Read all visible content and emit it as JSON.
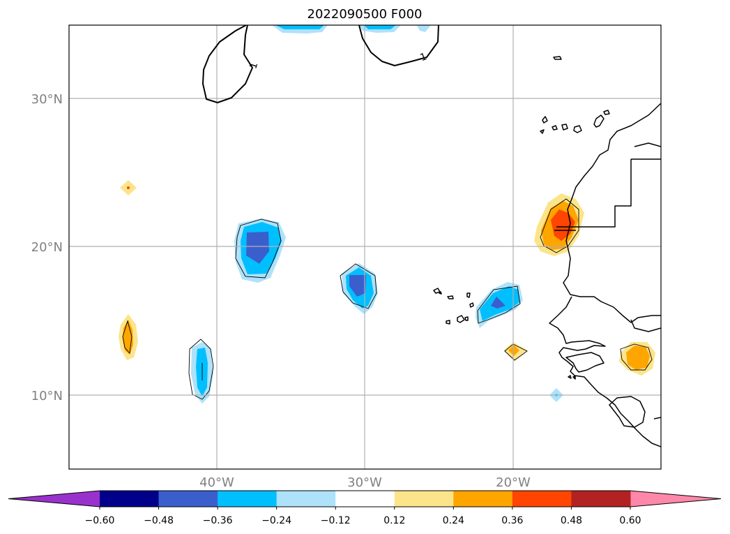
{
  "title": "2022090500 F000",
  "map": {
    "lat_labels": [
      "30°N",
      "20°N",
      "10°N"
    ],
    "lon_labels": [
      "40°W",
      "30°W",
      "20°W"
    ],
    "contour_label": "1"
  },
  "colorbar": {
    "extend": "both",
    "ticks": [
      "−0.60",
      "−0.48",
      "−0.36",
      "−0.24",
      "−0.12",
      "0.12",
      "0.24",
      "0.36",
      "0.48",
      "0.60"
    ],
    "colors": [
      "#9932cc",
      "#00008b",
      "#3a5fcd",
      "#00bfff",
      "#ade2fa",
      "#ffffff",
      "#fce48a",
      "#ffa500",
      "#ff4500",
      "#b22222",
      "#ff88aa"
    ]
  }
}
